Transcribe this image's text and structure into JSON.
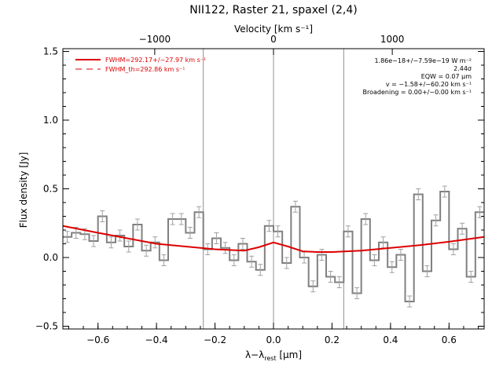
{
  "chart_data": {
    "type": "line",
    "title": "NII122, Raster 21, spaxel (2,4)",
    "xlabel": "λ−λ",
    "xlabel_sub": "rest",
    "xlabel_unit": " [μm]",
    "ylabel": "Flux density [Jy]",
    "top_axis_label": "Velocity [km s⁻¹]",
    "xlim": [
      -0.72,
      0.72
    ],
    "ylim": [
      -0.52,
      1.52
    ],
    "x_ticks": [
      -0.6,
      -0.4,
      -0.2,
      0.0,
      0.2,
      0.4,
      0.6
    ],
    "x_tick_labels": [
      "−0.6",
      "−0.4",
      "−0.2",
      "0.0",
      "0.2",
      "0.4",
      "0.6"
    ],
    "y_ticks": [
      -0.5,
      0.0,
      0.5,
      1.0,
      1.5
    ],
    "y_tick_labels": [
      "−0.5",
      "0.0",
      "0.5",
      "1.0",
      "1.5"
    ],
    "top_ticks_um": [
      -0.406,
      0.0,
      0.406
    ],
    "top_tick_labels": [
      "−1000",
      "0",
      "1000"
    ],
    "vertical_lines_x": [
      -0.24,
      0.0,
      0.24
    ],
    "legend": [
      {
        "label": "FWHM=292.17+/−27.97 km s⁻¹",
        "style": "solid",
        "color": "#dd0000"
      },
      {
        "label": "FWHM_th=292.86 km s⁻¹",
        "style": "dashed",
        "color": "#dd0000"
      }
    ],
    "annotations": [
      "1.86e−18+/−7.59e−19 W m⁻²",
      "2.44σ",
      "EQW = 0.07 μm",
      "v = −1.58+/−60.20 km s⁻¹",
      "Broadening = 0.00+/−0.00 km s⁻¹"
    ],
    "series": [
      {
        "kind": "step",
        "color": "#808080",
        "x": [
          -0.72,
          -0.69,
          -0.66,
          -0.63,
          -0.6,
          -0.57,
          -0.54,
          -0.51,
          -0.48,
          -0.45,
          -0.42,
          -0.39,
          -0.36,
          -0.33,
          -0.3,
          -0.27,
          -0.24,
          -0.21,
          -0.18,
          -0.15,
          -0.12,
          -0.09,
          -0.06,
          -0.03,
          0.0,
          0.03,
          0.06,
          0.09,
          0.12,
          0.15,
          0.18,
          0.21,
          0.24,
          0.27,
          0.3,
          0.33,
          0.36,
          0.39,
          0.42,
          0.45,
          0.48,
          0.51,
          0.54,
          0.57,
          0.6,
          0.63,
          0.66,
          0.69
        ],
        "values": [
          0.15,
          0.18,
          0.17,
          0.12,
          0.3,
          0.11,
          0.16,
          0.08,
          0.24,
          0.05,
          0.11,
          -0.02,
          0.28,
          0.28,
          0.18,
          0.33,
          0.06,
          0.14,
          0.07,
          -0.02,
          0.1,
          -0.03,
          -0.09,
          0.23,
          0.19,
          -0.04,
          0.37,
          0.0,
          -0.21,
          0.02,
          -0.14,
          -0.18,
          0.19,
          -0.26,
          0.28,
          -0.02,
          0.11,
          -0.07,
          0.02,
          -0.32,
          0.46,
          -0.1,
          0.27,
          0.48,
          0.06,
          0.21,
          -0.14,
          0.33
        ],
        "errors": [
          0.04,
          0.04,
          0.04,
          0.04,
          0.04,
          0.04,
          0.04,
          0.04,
          0.04,
          0.04,
          0.04,
          0.04,
          0.04,
          0.04,
          0.04,
          0.04,
          0.04,
          0.04,
          0.04,
          0.04,
          0.04,
          0.04,
          0.04,
          0.04,
          0.04,
          0.04,
          0.04,
          0.04,
          0.04,
          0.04,
          0.04,
          0.04,
          0.04,
          0.04,
          0.04,
          0.04,
          0.04,
          0.04,
          0.04,
          0.04,
          0.04,
          0.04,
          0.04,
          0.04,
          0.04,
          0.04,
          0.04,
          0.04
        ]
      },
      {
        "kind": "line",
        "color": "#dd0000",
        "style": "solid",
        "x": [
          -0.72,
          -0.6,
          -0.5,
          -0.4,
          -0.3,
          -0.2,
          -0.15,
          -0.1,
          -0.05,
          0.0,
          0.05,
          0.1,
          0.15,
          0.2,
          0.3,
          0.4,
          0.5,
          0.6,
          0.72
        ],
        "values": [
          0.23,
          0.18,
          0.14,
          0.1,
          0.08,
          0.06,
          0.055,
          0.05,
          0.075,
          0.11,
          0.08,
          0.045,
          0.04,
          0.04,
          0.05,
          0.07,
          0.09,
          0.115,
          0.15
        ]
      }
    ]
  }
}
